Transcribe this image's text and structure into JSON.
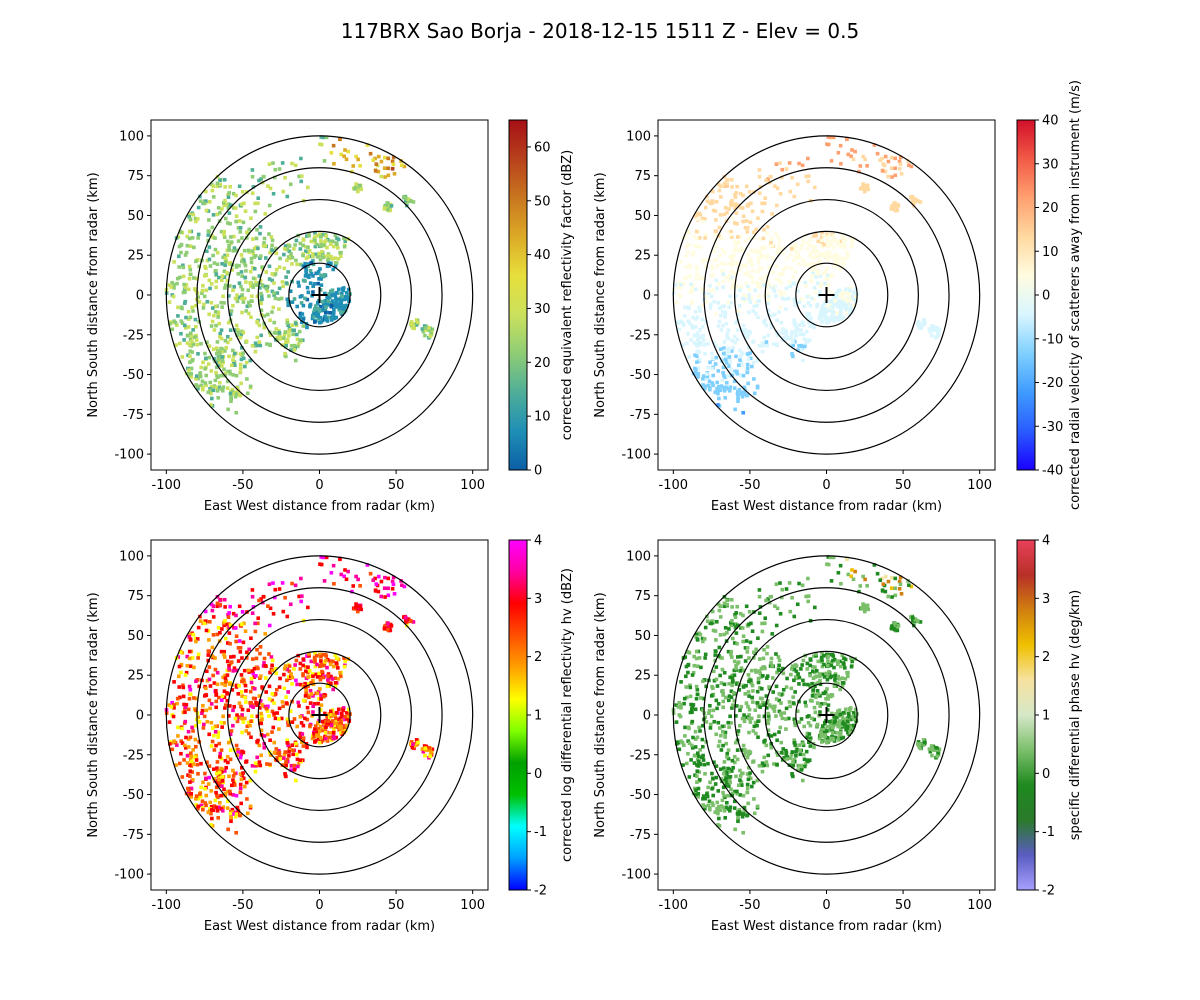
{
  "figure": {
    "title": "117BRX Sao Borja - 2018-12-15 1511 Z -  Elev = 0.5"
  },
  "chart_data": [
    {
      "type": "heatmap",
      "panel": "top-left",
      "title": "",
      "xlabel": "East West distance from radar (km)",
      "ylabel": "North South distance from radar (km)",
      "xlim": [
        -110,
        110
      ],
      "ylim": [
        -110,
        110
      ],
      "xticks": [
        -100,
        -50,
        0,
        50,
        100
      ],
      "yticks": [
        -100,
        -75,
        -50,
        -25,
        0,
        25,
        50,
        75,
        100
      ],
      "range_rings_km": [
        20,
        40,
        60,
        80,
        100
      ],
      "colorbar": {
        "label": "corrected equivalent reflectivity factor (dBZ)",
        "range": [
          0,
          65
        ],
        "ticks": [
          0,
          10,
          20,
          30,
          40,
          50,
          60
        ],
        "colors": [
          "#0b5fa5",
          "#1f8fb6",
          "#4fae98",
          "#8fcd75",
          "#cbe15c",
          "#e7df3c",
          "#dcaa26",
          "#c9761f",
          "#b8411c",
          "#a50f15"
        ]
      }
    },
    {
      "type": "heatmap",
      "panel": "top-right",
      "title": "",
      "xlabel": "East West distance from radar (km)",
      "ylabel": "North South distance from radar (km)",
      "xlim": [
        -110,
        110
      ],
      "ylim": [
        -110,
        110
      ],
      "xticks": [
        -100,
        -50,
        0,
        50,
        100
      ],
      "yticks": [
        -100,
        -75,
        -50,
        -25,
        0,
        25,
        50,
        75,
        100
      ],
      "range_rings_km": [
        20,
        40,
        60,
        80,
        100
      ],
      "colorbar": {
        "label": "corrected radial velocity of scatterers away from instrument (m/s)",
        "range": [
          -40,
          40
        ],
        "ticks": [
          -40,
          -30,
          -20,
          -10,
          0,
          10,
          20,
          30,
          40
        ],
        "colors": [
          "#1a00ff",
          "#2a5cff",
          "#3f9bff",
          "#7fd0ff",
          "#d9f6ff",
          "#fffce0",
          "#ffd9a0",
          "#ffa070",
          "#f25a46",
          "#d20f2a"
        ]
      }
    },
    {
      "type": "heatmap",
      "panel": "bottom-left",
      "title": "",
      "xlabel": "East West distance from radar (km)",
      "ylabel": "North South distance from radar (km)",
      "xlim": [
        -110,
        110
      ],
      "ylim": [
        -110,
        110
      ],
      "xticks": [
        -100,
        -50,
        0,
        50,
        100
      ],
      "yticks": [
        -100,
        -75,
        -50,
        -25,
        0,
        25,
        50,
        75,
        100
      ],
      "range_rings_km": [
        20,
        40,
        60,
        80,
        100
      ],
      "colorbar": {
        "label": "corrected log differential reflectivity hv (dBZ)",
        "range": [
          -2,
          4
        ],
        "ticks": [
          -2,
          -1,
          0,
          1,
          2,
          3,
          4
        ],
        "colors": [
          "#0000ff",
          "#00a0ff",
          "#00ffff",
          "#00c000",
          "#00a000",
          "#80ff00",
          "#ffff00",
          "#ffa000",
          "#ff5000",
          "#ff0000",
          "#ff00a0",
          "#ff00ff"
        ]
      }
    },
    {
      "type": "heatmap",
      "panel": "bottom-right",
      "title": "",
      "xlabel": "East West distance from radar (km)",
      "ylabel": "North South distance from radar (km)",
      "xlim": [
        -110,
        110
      ],
      "ylim": [
        -110,
        110
      ],
      "xticks": [
        -100,
        -50,
        0,
        50,
        100
      ],
      "yticks": [
        -100,
        -75,
        -50,
        -25,
        0,
        25,
        50,
        75,
        100
      ],
      "range_rings_km": [
        20,
        40,
        60,
        80,
        100
      ],
      "colorbar": {
        "label": "specific differential phase hv (deg/km)",
        "range": [
          -2,
          4
        ],
        "ticks": [
          -2,
          -1,
          0,
          1,
          2,
          3,
          4
        ],
        "colors": [
          "#a8a0ff",
          "#5a5cc0",
          "#2a7a2a",
          "#1f8a1f",
          "#7bbf6b",
          "#d6e8c8",
          "#f6e2a0",
          "#f0c000",
          "#d08010",
          "#b83028",
          "#e8405a"
        ]
      }
    }
  ]
}
